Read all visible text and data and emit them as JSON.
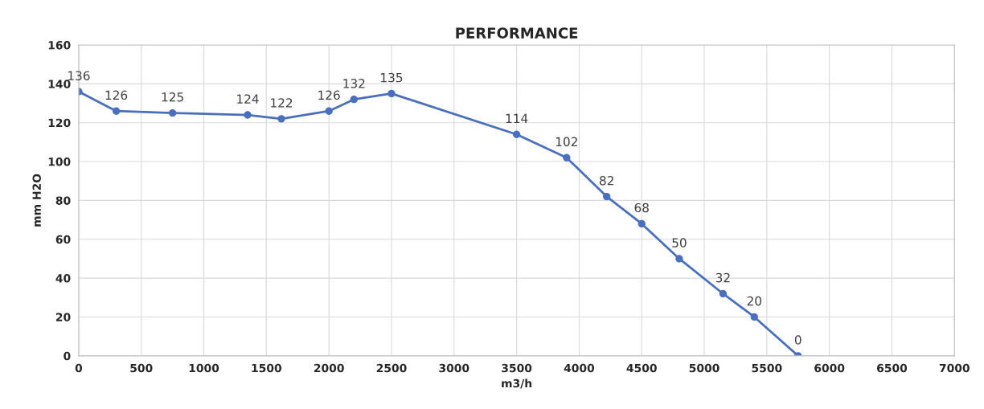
{
  "chart_data": {
    "type": "line",
    "title": "PERFORMANCE",
    "xlabel": "m3/h",
    "ylabel": "mm H2O",
    "x": [
      0,
      300,
      750,
      1350,
      1620,
      2000,
      2200,
      2500,
      3500,
      3900,
      4220,
      4500,
      4800,
      5150,
      5400,
      5750
    ],
    "series": [
      {
        "color": "#4a6fbf",
        "values": [
          136,
          126,
          125,
          124,
          122,
          126,
          132,
          135,
          114,
          102,
          82,
          68,
          50,
          32,
          20,
          0
        ]
      }
    ],
    "xlim": [
      0,
      7000
    ],
    "xticks": [
      0,
      500,
      1000,
      1500,
      2000,
      2500,
      3000,
      3500,
      4000,
      4500,
      5000,
      5500,
      6000,
      6500,
      7000
    ],
    "ylim": [
      0,
      160
    ],
    "yticks": [
      0,
      20,
      40,
      60,
      80,
      100,
      120,
      140,
      160
    ],
    "grid": true,
    "marker": "circle",
    "line_style": "solid",
    "data_labels": true
  }
}
